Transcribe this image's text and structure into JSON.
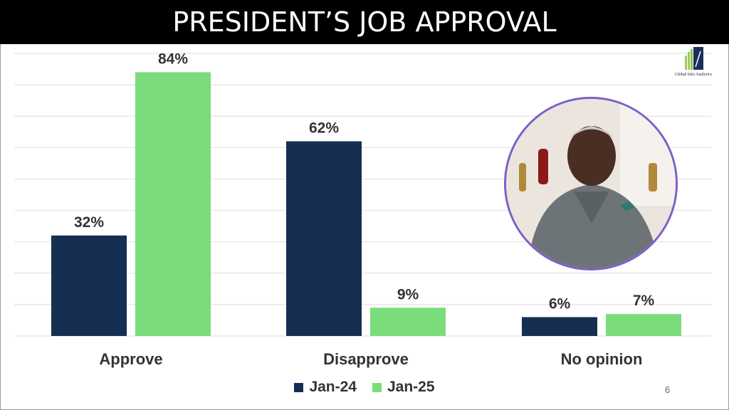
{
  "title": "PRESIDENT’S JOB APPROVAL",
  "logo": {
    "text": "Global Info Analytics"
  },
  "page_number": "6",
  "chart_data": {
    "type": "bar",
    "title": "PRESIDENT’S JOB APPROVAL",
    "categories": [
      "Approve",
      "Disapprove",
      "No opinion"
    ],
    "series": [
      {
        "name": "Jan-24",
        "color": "#162e52",
        "values": [
          32,
          62,
          6
        ],
        "labels": [
          "32%",
          "62%",
          "6%"
        ]
      },
      {
        "name": "Jan-25",
        "color": "#7bdc7b",
        "values": [
          84,
          9,
          7
        ],
        "labels": [
          "84%",
          "9%",
          "7%"
        ]
      }
    ],
    "ylim": [
      0,
      90
    ],
    "grid": true,
    "legend": "bottom",
    "xlabel": "",
    "ylabel": ""
  }
}
